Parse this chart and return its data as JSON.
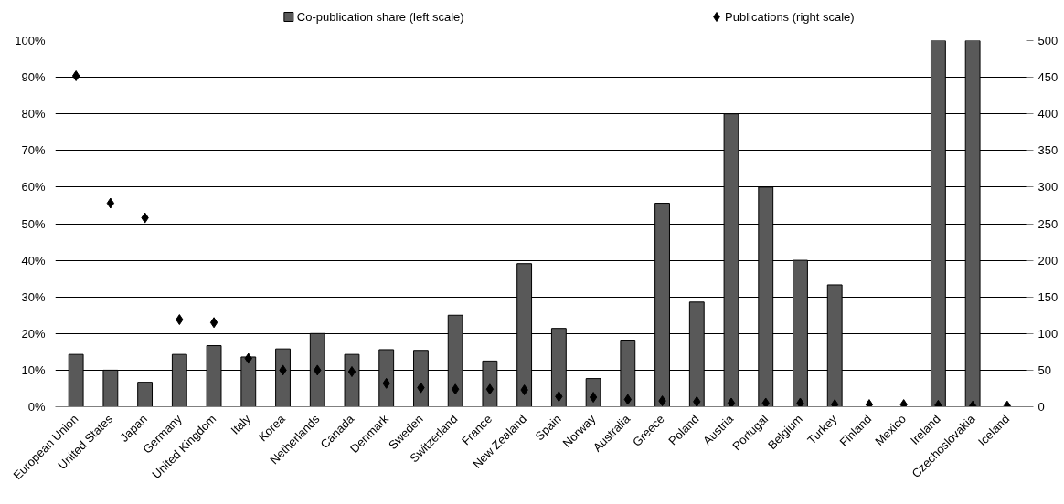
{
  "chart_data": {
    "type": "bar",
    "categories": [
      "European Union",
      "United States",
      "Japan",
      "Germany",
      "United Kingdom",
      "Italy",
      "Korea",
      "Netherlands",
      "Canada",
      "Denmark",
      "Sweden",
      "Switzerland",
      "France",
      "New Zealand",
      "Spain",
      "Norway",
      "Australia",
      "Greece",
      "Poland",
      "Austria",
      "Portugal",
      "Belgium",
      "Turkey",
      "Finland",
      "Mexico",
      "Ireland",
      "Czechoslovakia",
      "Iceland"
    ],
    "series": [
      {
        "name": "Co-publication share (left scale)",
        "color": "#595959",
        "values": [
          14.3,
          10,
          6.7,
          14.3,
          16.7,
          13.6,
          15.8,
          20,
          14.3,
          15.6,
          15.4,
          25,
          12.5,
          39.1,
          21.4,
          7.7,
          18.2,
          55.6,
          28.6,
          80,
          60,
          40,
          33.3,
          null,
          null,
          100,
          100,
          null
        ]
      },
      {
        "name": "Publications (right scale)",
        "color": "#000000",
        "type": "scatter",
        "axis": "y2",
        "marker": "diamond",
        "values": [
          452,
          278,
          258,
          119,
          115,
          66,
          50,
          50,
          48,
          32,
          26,
          24,
          24,
          23,
          14,
          13,
          10,
          8,
          7,
          5,
          5,
          5,
          3,
          3,
          3,
          2,
          1,
          1
        ]
      }
    ],
    "ylim": [
      0,
      100
    ],
    "yticks": [
      {
        "value": 0,
        "label": "0%"
      },
      {
        "value": 10,
        "label": "10%"
      },
      {
        "value": 20,
        "label": "20%"
      },
      {
        "value": 30,
        "label": "30%"
      },
      {
        "value": 40,
        "label": "40%"
      },
      {
        "value": 50,
        "label": "50%"
      },
      {
        "value": 60,
        "label": "60%"
      },
      {
        "value": 70,
        "label": "70%"
      },
      {
        "value": 80,
        "label": "80%"
      },
      {
        "value": 90,
        "label": "90%"
      },
      {
        "value": 100,
        "label": "100%"
      }
    ],
    "y2lim": [
      0,
      500
    ],
    "y2ticks": [
      0,
      50,
      100,
      150,
      200,
      250,
      300,
      350,
      400,
      450,
      500
    ],
    "grid": "y",
    "legend": "top"
  }
}
